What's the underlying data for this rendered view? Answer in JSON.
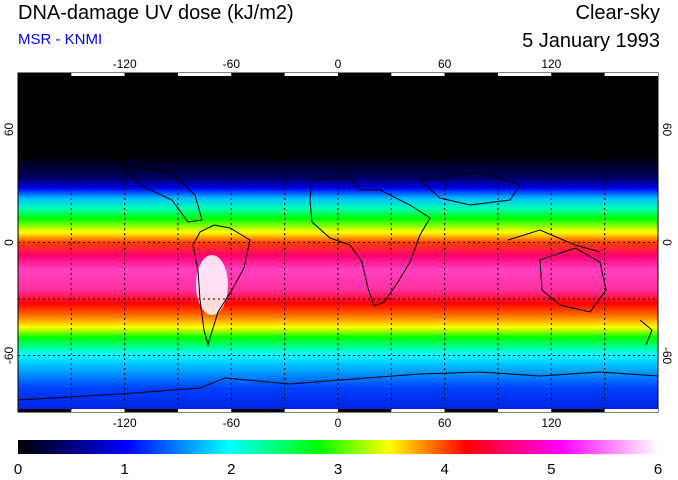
{
  "header": {
    "title": "DNA-damage UV dose (kJ/m2)",
    "source": "MSR - KNMI",
    "mode": "Clear-sky",
    "date": "5 January 1993"
  },
  "map": {
    "lon_ticks": [
      "-120",
      "-60",
      "0",
      "60",
      "120"
    ],
    "lat_ticks_left": [
      "60",
      "0",
      "-60"
    ],
    "lat_ticks_right": [
      "60",
      "0",
      "-60"
    ],
    "lat_range": [
      -90,
      90
    ],
    "lon_range": [
      -180,
      180
    ],
    "gridline_style": "dotted"
  },
  "colorbar": {
    "labels": [
      "0",
      "1",
      "2",
      "3",
      "4",
      "5",
      "6"
    ],
    "min": 0,
    "max": 6,
    "colors": [
      "#000000",
      "#0000ff",
      "#00ffff",
      "#00ff00",
      "#ffff00",
      "#ff0000",
      "#ff00ff",
      "#ffffff"
    ]
  }
}
